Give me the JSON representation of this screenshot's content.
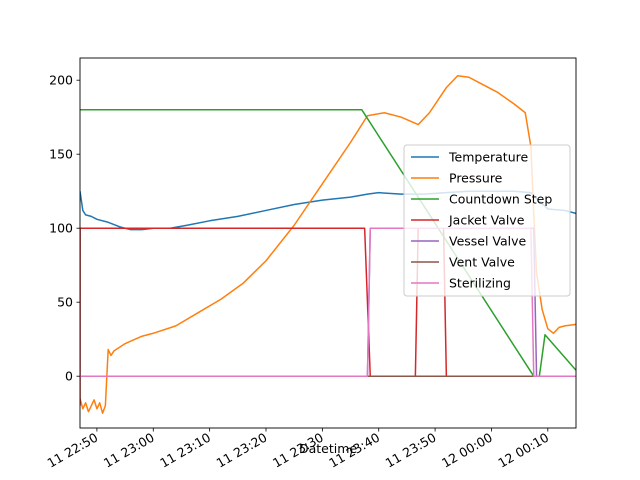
{
  "chart_data": {
    "type": "line",
    "title": "",
    "xlabel": "Datetime",
    "ylabel": "",
    "x_type": "datetime",
    "xlim": [
      "2000-01-11 22:47:00",
      "2000-01-12 00:15:00"
    ],
    "ylim": [
      -35,
      215
    ],
    "yticks": [
      0,
      50,
      100,
      150,
      200
    ],
    "ytick_labels": [
      "0",
      "50",
      "100",
      "150",
      "200"
    ],
    "xticks": [
      "2000-01-11 22:50:00",
      "2000-01-11 23:00:00",
      "2000-01-11 23:10:00",
      "2000-01-11 23:20:00",
      "2000-01-11 23:30:00",
      "2000-01-11 23:40:00",
      "2000-01-11 23:50:00",
      "2000-01-12 00:00:00",
      "2000-01-12 00:10:00"
    ],
    "xtick_labels": [
      "11 22:50",
      "11 23:00",
      "11 23:10",
      "11 23:20",
      "11 23:30",
      "11 23:40",
      "11 23:50",
      "12 00:00",
      "12 00:10"
    ],
    "grid": false,
    "legend_position": "center-right",
    "series": [
      {
        "name": "Temperature",
        "color": "#1f77b4",
        "x": [
          "2000-01-11 22:47:00",
          "2000-01-11 22:47:30",
          "2000-01-11 22:48:00",
          "2000-01-11 22:49:00",
          "2000-01-11 22:50:00",
          "2000-01-11 22:52:00",
          "2000-01-11 22:54:00",
          "2000-01-11 22:56:00",
          "2000-01-11 22:58:00",
          "2000-01-11 23:00:00",
          "2000-01-11 23:03:00",
          "2000-01-11 23:06:00",
          "2000-01-11 23:10:00",
          "2000-01-11 23:15:00",
          "2000-01-11 23:20:00",
          "2000-01-11 23:25:00",
          "2000-01-11 23:30:00",
          "2000-01-11 23:35:00",
          "2000-01-11 23:38:00",
          "2000-01-11 23:40:00",
          "2000-01-11 23:44:00",
          "2000-01-11 23:48:00",
          "2000-01-11 23:52:00",
          "2000-01-11 23:56:00",
          "2000-01-12 00:00:00",
          "2000-01-12 00:04:00",
          "2000-01-12 00:07:00",
          "2000-01-12 00:08:00",
          "2000-01-12 00:10:00",
          "2000-01-12 00:13:00",
          "2000-01-12 00:15:00"
        ],
        "values": [
          125,
          112,
          109,
          108,
          106,
          104,
          101,
          99,
          99,
          100,
          100,
          102,
          105,
          108,
          112,
          116,
          119,
          121,
          123,
          124,
          123,
          123,
          124,
          125,
          125,
          125,
          124,
          120,
          113,
          112,
          110
        ]
      },
      {
        "name": "Pressure",
        "color": "#ff7f0e",
        "x": [
          "2000-01-11 22:47:00",
          "2000-01-11 22:47:30",
          "2000-01-11 22:48:00",
          "2000-01-11 22:48:30",
          "2000-01-11 22:49:00",
          "2000-01-11 22:49:30",
          "2000-01-11 22:50:00",
          "2000-01-11 22:50:30",
          "2000-01-11 22:51:00",
          "2000-01-11 22:51:30",
          "2000-01-11 22:52:00",
          "2000-01-11 22:52:30",
          "2000-01-11 22:53:00",
          "2000-01-11 22:55:00",
          "2000-01-11 22:58:00",
          "2000-01-11 23:00:00",
          "2000-01-11 23:04:00",
          "2000-01-11 23:08:00",
          "2000-01-11 23:12:00",
          "2000-01-11 23:16:00",
          "2000-01-11 23:20:00",
          "2000-01-11 23:25:00",
          "2000-01-11 23:30:00",
          "2000-01-11 23:35:00",
          "2000-01-11 23:38:00",
          "2000-01-11 23:41:00",
          "2000-01-11 23:44:00",
          "2000-01-11 23:47:00",
          "2000-01-11 23:49:00",
          "2000-01-11 23:52:00",
          "2000-01-11 23:54:00",
          "2000-01-11 23:56:00",
          "2000-01-11 23:58:00",
          "2000-01-12 00:01:00",
          "2000-01-12 00:04:00",
          "2000-01-12 00:06:00",
          "2000-01-12 00:07:00",
          "2000-01-12 00:07:30",
          "2000-01-12 00:08:00",
          "2000-01-12 00:09:00",
          "2000-01-12 00:10:00",
          "2000-01-12 00:11:00",
          "2000-01-12 00:12:00",
          "2000-01-12 00:13:00",
          "2000-01-12 00:15:00"
        ],
        "values": [
          -15,
          -22,
          -18,
          -24,
          -20,
          -16,
          -22,
          -18,
          -25,
          -20,
          18,
          14,
          17,
          22,
          27,
          29,
          34,
          43,
          52,
          63,
          78,
          102,
          130,
          158,
          176,
          178,
          175,
          170,
          178,
          195,
          203,
          202,
          198,
          192,
          184,
          178,
          155,
          110,
          70,
          45,
          32,
          29,
          33,
          34,
          35
        ]
      },
      {
        "name": "Countdown Step",
        "color": "#2ca02c",
        "x": [
          "2000-01-11 22:47:00",
          "2000-01-11 23:37:00",
          "2000-01-12 00:07:30",
          "2000-01-12 00:08:30",
          "2000-01-12 00:09:30",
          "2000-01-12 00:15:00"
        ],
        "values": [
          180,
          180,
          0,
          0,
          28,
          4
        ]
      },
      {
        "name": "Jacket Valve",
        "color": "#d62728",
        "x": [
          "2000-01-11 22:47:00",
          "2000-01-11 22:47:01",
          "2000-01-11 23:37:30",
          "2000-01-11 23:38:30",
          "2000-01-11 23:46:30",
          "2000-01-11 23:47:00",
          "2000-01-11 23:51:30",
          "2000-01-11 23:52:00",
          "2000-01-12 00:07:30",
          "2000-01-12 00:08:00",
          "2000-01-12 00:15:00"
        ],
        "values": [
          -20,
          100,
          100,
          0,
          0,
          100,
          100,
          0,
          0,
          0,
          0
        ]
      },
      {
        "name": "Vessel Valve",
        "color": "#9467bd",
        "x": [
          "2000-01-11 22:47:00",
          "2000-01-11 23:38:00",
          "2000-01-11 23:38:30",
          "2000-01-12 00:07:30",
          "2000-01-12 00:08:00",
          "2000-01-12 00:15:00"
        ],
        "values": [
          0,
          0,
          100,
          100,
          0,
          0
        ]
      },
      {
        "name": "Vent Valve",
        "color": "#8c564b",
        "x": [
          "2000-01-11 22:47:00",
          "2000-01-12 00:15:00"
        ],
        "values": [
          0,
          0
        ]
      },
      {
        "name": "Sterilizing",
        "color": "#e377c2",
        "x": [
          "2000-01-11 22:47:00",
          "2000-01-11 23:38:00",
          "2000-01-11 23:38:30",
          "2000-01-12 00:07:00",
          "2000-01-12 00:07:30",
          "2000-01-12 00:13:30",
          "2000-01-12 00:14:00",
          "2000-01-12 00:15:00"
        ],
        "values": [
          0,
          0,
          100,
          100,
          0,
          0,
          0,
          0
        ]
      }
    ]
  }
}
